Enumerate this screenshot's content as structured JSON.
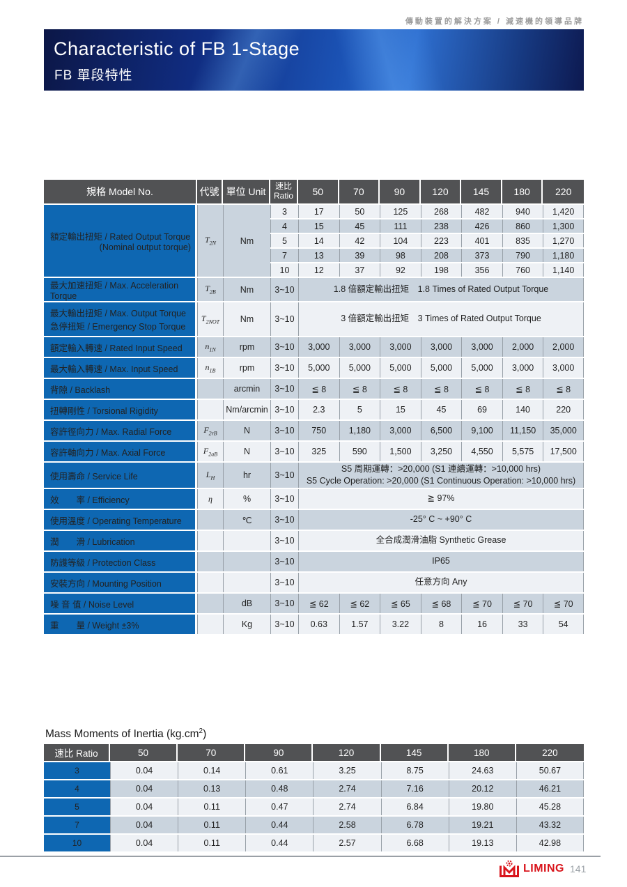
{
  "page": {
    "tagline": "傳動裝置的解決方案 / 減速機的領導品牌",
    "title": "Characteristic of FB 1-Stage",
    "subtitle": "FB 單段特性",
    "footer": {
      "brand": "LIMING",
      "page_number": "141",
      "brand_color": "#d9151c"
    }
  },
  "colors": {
    "accent_blue": "#0e67b2",
    "header_gray": "#515254",
    "row_light": "#eef1f5",
    "row_dark": "#cad4de"
  },
  "spec_table": {
    "header": {
      "model": "規格 Model No.",
      "code": "代號",
      "unit": "單位 Unit",
      "ratio_line1": "速比",
      "ratio_line2": "Ratio",
      "sizes": [
        "50",
        "70",
        "90",
        "120",
        "145",
        "180",
        "220"
      ]
    },
    "group": {
      "label_lines": [
        "額定輸出扭矩 / Rated Output Torque",
        "(Nominal output torque)"
      ],
      "symbol": "T",
      "symbol_sub": "2N",
      "unit": "Nm",
      "subrows": [
        {
          "ratio": "3",
          "values": [
            "17",
            "50",
            "125",
            "268",
            "482",
            "940",
            "1,420"
          ]
        },
        {
          "ratio": "4",
          "values": [
            "15",
            "45",
            "111",
            "238",
            "426",
            "860",
            "1,300"
          ]
        },
        {
          "ratio": "5",
          "values": [
            "14",
            "42",
            "104",
            "223",
            "401",
            "835",
            "1,270"
          ]
        },
        {
          "ratio": "7",
          "values": [
            "13",
            "39",
            "98",
            "208",
            "373",
            "790",
            "1,180"
          ]
        },
        {
          "ratio": "10",
          "values": [
            "12",
            "37",
            "92",
            "198",
            "356",
            "760",
            "1,140"
          ]
        }
      ]
    },
    "rows": [
      {
        "label_lines": [
          "最大加速扭矩 / Max. Acceleration Torque"
        ],
        "symbol": "T",
        "symbol_sub": "2B",
        "unit": "Nm",
        "ratio": "3~10",
        "merged_lines": [
          "1.8 倍額定輸出扭矩　1.8 Times of Rated Output Torque"
        ]
      },
      {
        "label_lines": [
          "最大輸出扭矩 / Max. Output Torque",
          "急停扭矩 / Emergency Stop Torque"
        ],
        "symbol": "T",
        "symbol_sub": "2NOT",
        "unit": "Nm",
        "ratio": "3~10",
        "merged_lines": [
          "3 倍額定輸出扭矩　3 Times of Rated Output Torque"
        ]
      },
      {
        "label_lines": [
          "額定輸入轉速 / Rated Input Speed"
        ],
        "symbol": "n",
        "symbol_sub": "1N",
        "unit": "rpm",
        "ratio": "3~10",
        "values": [
          "3,000",
          "3,000",
          "3,000",
          "3,000",
          "3,000",
          "2,000",
          "2,000"
        ]
      },
      {
        "label_lines": [
          "最大輸入轉速 / Max. Input Speed"
        ],
        "symbol": "n",
        "symbol_sub": "1B",
        "unit": "rpm",
        "ratio": "3~10",
        "values": [
          "5,000",
          "5,000",
          "5,000",
          "5,000",
          "5,000",
          "3,000",
          "3,000"
        ]
      },
      {
        "label_lines": [
          "背隙 / Backlash"
        ],
        "symbol": "",
        "symbol_sub": "",
        "unit": "arcmin",
        "ratio": "3~10",
        "values": [
          "≦ 8",
          "≦ 8",
          "≦ 8",
          "≦ 8",
          "≦ 8",
          "≦ 8",
          "≦ 8"
        ]
      },
      {
        "label_lines": [
          "扭轉剛性 / Torsional Rigidity"
        ],
        "symbol": "",
        "symbol_sub": "",
        "unit": "Nm/arcmin",
        "ratio": "3~10",
        "values": [
          "2.3",
          "5",
          "15",
          "45",
          "69",
          "140",
          "220"
        ]
      },
      {
        "label_lines": [
          "容許徑向力 / Max. Radial Force"
        ],
        "symbol": "F",
        "symbol_sub": "2rB",
        "unit": "N",
        "ratio": "3~10",
        "values": [
          "750",
          "1,180",
          "3,000",
          "6,500",
          "9,100",
          "11,150",
          "35,000"
        ]
      },
      {
        "label_lines": [
          "容許軸向力 / Max. Axial Force"
        ],
        "symbol": "F",
        "symbol_sub": "2aB",
        "unit": "N",
        "ratio": "3~10",
        "values": [
          "325",
          "590",
          "1,500",
          "3,250",
          "4,550",
          "5,575",
          "17,500"
        ]
      },
      {
        "label_lines": [
          "使用壽命 / Service Life"
        ],
        "symbol": "L",
        "symbol_sub": "H",
        "unit": "hr",
        "ratio": "3~10",
        "merged_lines": [
          "S5 周期運轉：>20,000 (S1 連續運轉：>10,000 hrs)",
          "S5 Cycle Operation: >20,000 (S1 Continuous Operation: >10,000 hrs)"
        ]
      },
      {
        "label_lines": [
          "效　　率 / Efficiency"
        ],
        "symbol": "η",
        "symbol_sub": "",
        "unit": "%",
        "ratio": "3~10",
        "merged_lines": [
          "≧ 97%"
        ]
      },
      {
        "label_lines": [
          "使用溫度 / Operating Temperature"
        ],
        "symbol": "",
        "symbol_sub": "",
        "unit": "℃",
        "ratio": "3~10",
        "merged_lines": [
          "-25° C ~ +90° C"
        ]
      },
      {
        "label_lines": [
          "潤　　滑 / Lubrication"
        ],
        "symbol": "",
        "symbol_sub": "",
        "unit": "",
        "ratio": "3~10",
        "merged_lines": [
          "全合成潤滑油脂 Synthetic Grease"
        ]
      },
      {
        "label_lines": [
          "防護等級 / Protection Class"
        ],
        "symbol": "",
        "symbol_sub": "",
        "unit": "",
        "ratio": "3~10",
        "merged_lines": [
          "IP65"
        ]
      },
      {
        "label_lines": [
          "安裝方向 / Mounting Position"
        ],
        "symbol": "",
        "symbol_sub": "",
        "unit": "",
        "ratio": "3~10",
        "merged_lines": [
          "任意方向 Any"
        ]
      },
      {
        "label_lines": [
          "噪 音 值 / Noise Level"
        ],
        "symbol": "",
        "symbol_sub": "",
        "unit": "dB",
        "ratio": "3~10",
        "values": [
          "≦ 62",
          "≦ 62",
          "≦ 65",
          "≦ 68",
          "≦ 70",
          "≦ 70",
          "≦ 70"
        ]
      },
      {
        "label_lines": [
          "重　　量 / Weight ±3%"
        ],
        "symbol": "",
        "symbol_sub": "",
        "unit": "Kg",
        "ratio": "3~10",
        "values": [
          "0.63",
          "1.57",
          "3.22",
          "8",
          "16",
          "33",
          "54"
        ]
      }
    ]
  },
  "inertia_table": {
    "title_prefix": "Mass Moments of Inertia (kg.cm",
    "title_sup": "2",
    "title_suffix": ")",
    "header": {
      "ratio": "速比 Ratio",
      "sizes": [
        "50",
        "70",
        "90",
        "120",
        "145",
        "180",
        "220"
      ]
    },
    "rows": [
      {
        "ratio": "3",
        "values": [
          "0.04",
          "0.14",
          "0.61",
          "3.25",
          "8.75",
          "24.63",
          "50.67"
        ]
      },
      {
        "ratio": "4",
        "values": [
          "0.04",
          "0.13",
          "0.48",
          "2.74",
          "7.16",
          "20.12",
          "46.21"
        ]
      },
      {
        "ratio": "5",
        "values": [
          "0.04",
          "0.11",
          "0.47",
          "2.74",
          "6.84",
          "19.80",
          "45.28"
        ]
      },
      {
        "ratio": "7",
        "values": [
          "0.04",
          "0.11",
          "0.44",
          "2.58",
          "6.78",
          "19.21",
          "43.32"
        ]
      },
      {
        "ratio": "10",
        "values": [
          "0.04",
          "0.11",
          "0.44",
          "2.57",
          "6.68",
          "19.13",
          "42.98"
        ]
      }
    ]
  }
}
